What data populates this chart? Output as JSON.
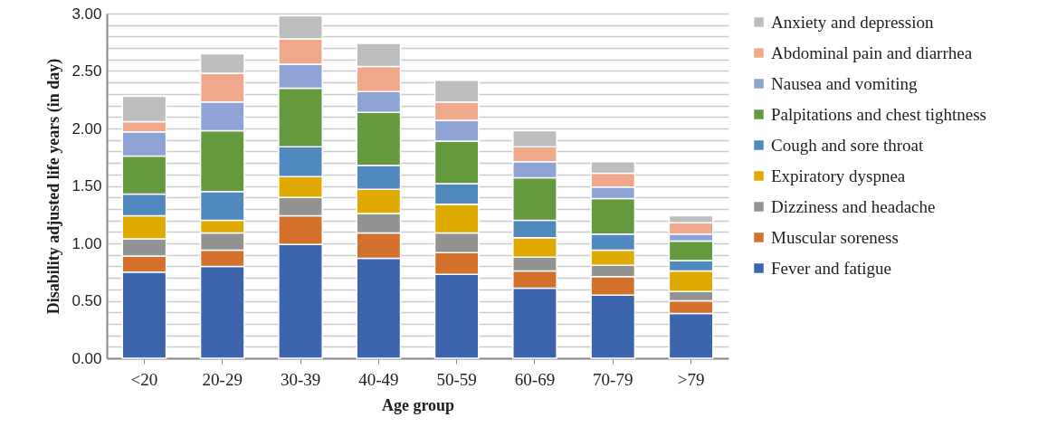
{
  "chart_data": {
    "type": "bar",
    "stacked": true,
    "xlabel": "Age group",
    "ylabel": "Disability adjusted life years (in day)",
    "categories": [
      "<20",
      "20-29",
      "30-39",
      "40-49",
      "50-59",
      "60-69",
      "70-79",
      ">79"
    ],
    "ylim": [
      0,
      3
    ],
    "yticks": [
      {
        "value": 0,
        "label": "0.00"
      },
      {
        "value": 0.1,
        "label": null
      },
      {
        "value": 0.2,
        "label": null
      },
      {
        "value": 0.3,
        "label": null
      },
      {
        "value": 0.4,
        "label": null
      },
      {
        "value": 0.5,
        "label": "0.50"
      },
      {
        "value": 0.6,
        "label": null
      },
      {
        "value": 0.7,
        "label": null
      },
      {
        "value": 0.8,
        "label": null
      },
      {
        "value": 0.9,
        "label": null
      },
      {
        "value": 1,
        "label": "1.00"
      },
      {
        "value": 1.1,
        "label": null
      },
      {
        "value": 1.2,
        "label": null
      },
      {
        "value": 1.3,
        "label": null
      },
      {
        "value": 1.4,
        "label": null
      },
      {
        "value": 1.5,
        "label": "1.50"
      },
      {
        "value": 1.6,
        "label": null
      },
      {
        "value": 1.7,
        "label": null
      },
      {
        "value": 1.8,
        "label": null
      },
      {
        "value": 1.9,
        "label": null
      },
      {
        "value": 2,
        "label": "2.00"
      },
      {
        "value": 2.1,
        "label": null
      },
      {
        "value": 2.2,
        "label": null
      },
      {
        "value": 2.3,
        "label": null
      },
      {
        "value": 2.4,
        "label": null
      },
      {
        "value": 2.5,
        "label": "2.50"
      },
      {
        "value": 2.6,
        "label": null
      },
      {
        "value": 2.7,
        "label": null
      },
      {
        "value": 2.8,
        "label": null
      },
      {
        "value": 2.9,
        "label": null
      },
      {
        "value": 3,
        "label": "3.00"
      }
    ],
    "grid": "y",
    "legend": "right",
    "series": [
      {
        "name": "Fever and fatigue",
        "color": "#3d65ad",
        "values": [
          0.75,
          0.8,
          0.99,
          0.87,
          0.73,
          0.61,
          0.55,
          0.39
        ]
      },
      {
        "name": "Muscular soreness",
        "color": "#d3702b",
        "values": [
          0.14,
          0.14,
          0.25,
          0.22,
          0.19,
          0.15,
          0.16,
          0.11
        ]
      },
      {
        "name": "Dizziness and headache",
        "color": "#939393",
        "values": [
          0.15,
          0.15,
          0.16,
          0.17,
          0.17,
          0.12,
          0.1,
          0.08
        ]
      },
      {
        "name": "Expiratory dyspnea",
        "color": "#e0aa00",
        "values": [
          0.2,
          0.11,
          0.18,
          0.21,
          0.25,
          0.17,
          0.13,
          0.18
        ]
      },
      {
        "name": "Cough and sore throat",
        "color": "#4f89bd",
        "values": [
          0.19,
          0.25,
          0.26,
          0.21,
          0.18,
          0.15,
          0.14,
          0.09
        ]
      },
      {
        "name": "Palpitations and chest tightness",
        "color": "#639a3e",
        "values": [
          0.33,
          0.53,
          0.51,
          0.46,
          0.37,
          0.37,
          0.31,
          0.17
        ]
      },
      {
        "name": "Nausea and vomiting",
        "color": "#8fa3d4",
        "values": [
          0.21,
          0.25,
          0.21,
          0.18,
          0.18,
          0.14,
          0.1,
          0.06
        ]
      },
      {
        "name": "Abdominal pain and diarrhea",
        "color": "#f0a88a",
        "values": [
          0.09,
          0.25,
          0.22,
          0.22,
          0.16,
          0.13,
          0.12,
          0.1
        ]
      },
      {
        "name": "Anxiety and depression",
        "color": "#bdbdbd",
        "values": [
          0.22,
          0.17,
          0.2,
          0.2,
          0.19,
          0.14,
          0.1,
          0.06
        ]
      }
    ]
  }
}
